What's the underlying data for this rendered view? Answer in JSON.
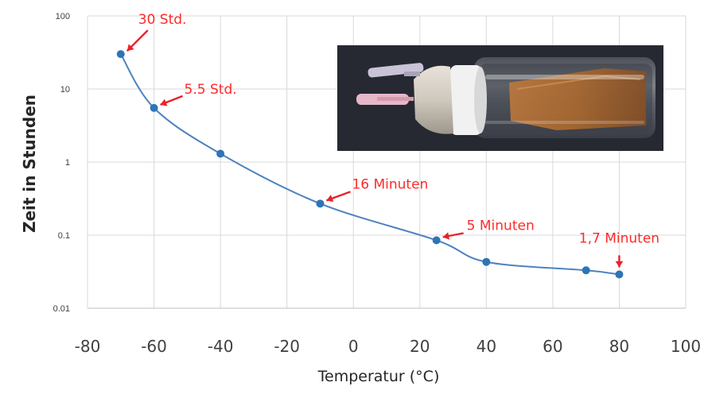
{
  "chart_data": {
    "type": "scatter",
    "xlabel": "Temperatur (°C)",
    "ylabel": "Zeit in Stunden",
    "xlim": [
      -80,
      100
    ],
    "ylim": [
      0.01,
      100
    ],
    "yscale": "log",
    "grid": true,
    "x_ticks": [
      "-80",
      "-60",
      "-40",
      "-20",
      "0",
      "20",
      "40",
      "60",
      "80",
      "100"
    ],
    "y_ticks": [
      "100",
      "10",
      "1",
      "0.1",
      "0.01"
    ],
    "series": [
      {
        "x": [
          -70,
          -60,
          -40,
          -10,
          25,
          40,
          70,
          80
        ],
        "y": [
          30,
          5.5,
          1.3,
          0.27,
          0.085,
          0.043,
          0.033,
          0.029
        ],
        "color": "#2e75b6"
      }
    ],
    "annotations": [
      {
        "text": "30 Std.",
        "x": -70,
        "y": 30
      },
      {
        "text": "5.5 Std.",
        "x": -60,
        "y": 5.5
      },
      {
        "text": "16 Minuten",
        "x": -10,
        "y": 0.27
      },
      {
        "text": "5 Minuten",
        "x": 25,
        "y": 0.085
      },
      {
        "text": "1,7 Minuten",
        "x": 80,
        "y": 0.029
      }
    ],
    "annotation_color": "#ff2a2a"
  },
  "photo": {
    "name": "vial-photo",
    "background": "#23262d"
  }
}
